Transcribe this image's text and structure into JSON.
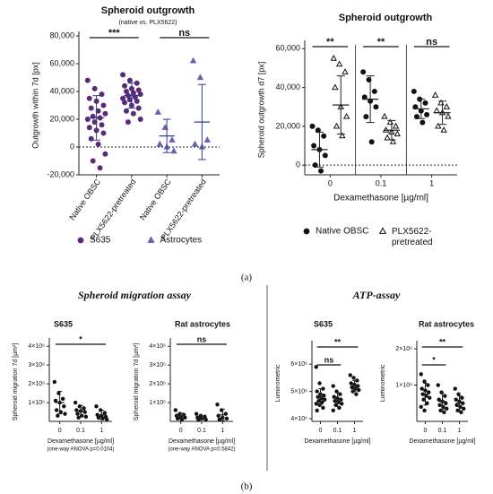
{
  "panel_labels": [
    "(a)",
    "(b)"
  ],
  "headers": [
    "Spheroid migration assay",
    "ATP-assay"
  ],
  "chart_data": [
    {
      "type": "dot",
      "title": "Spheroid outgrowth",
      "subtitle": "(native vs. PLX5622)",
      "ylabel": "Outgrowth within 7d [px]",
      "categories": [
        "Native OBSC",
        "PLX5622-pretreated",
        "Native OBSC",
        "PLX5622-pretreated"
      ],
      "ylim": [
        -20000,
        80000
      ],
      "yticks": [
        {
          "value": -20000,
          "label": "-20,000"
        },
        0,
        {
          "value": 20000,
          "label": "20,000"
        },
        {
          "value": 40000,
          "label": "40,000"
        },
        {
          "value": 60000,
          "label": "60,000"
        },
        {
          "value": 80000,
          "label": "80,000"
        }
      ],
      "zero_line": true,
      "legend": "bottom",
      "series": [
        {
          "name": "S635",
          "color": "#5b2a7a",
          "marker": "circle",
          "filled": true,
          "values": [
            [
              48000,
              42000,
              38000,
              35000,
              33000,
              30000,
              28000,
              26000,
              24000,
              22000,
              21000,
              20000,
              18000,
              16000,
              14000,
              12000,
              10000,
              6000,
              2000,
              -5000,
              -10000,
              -15000
            ],
            [
              52000,
              48000,
              46000,
              44000,
              42000,
              41000,
              40000,
              39000,
              38000,
              37000,
              36000,
              35000,
              34000,
              33000,
              32000,
              30000,
              28000,
              26000,
              24000,
              20000,
              18000
            ],
            null,
            null
          ],
          "mean": [
            21000,
            37000,
            null,
            null
          ],
          "sd": [
            16000,
            9000,
            null,
            null
          ]
        },
        {
          "name": "Astrocytes",
          "color": "#6a5fb0",
          "marker": "triangle",
          "filled": true,
          "values": [
            null,
            null,
            [
              25000,
              14000,
              5000,
              2000,
              0,
              -3000
            ],
            [
              62000,
              50000,
              5000,
              2000,
              0
            ]
          ],
          "mean": [
            null,
            null,
            8000,
            18000
          ],
          "sd": [
            null,
            null,
            12000,
            27000
          ]
        }
      ],
      "annotations": [
        {
          "text": "***",
          "from": 0,
          "to": 1
        },
        {
          "text": "ns",
          "from": 2,
          "to": 3
        }
      ]
    },
    {
      "type": "dot",
      "title": "Spheroid outgrowth",
      "ylabel": "Spheroid outgrowth d7 [px]",
      "xlabel": "Dexamethasone [µg/ml]",
      "categories": [
        "0",
        "0.1",
        "1"
      ],
      "ylim": [
        -5000,
        62000
      ],
      "yticks": [
        0,
        {
          "value": 20000,
          "label": "20,000"
        },
        {
          "value": 40000,
          "label": "40,000"
        },
        {
          "value": 60000,
          "label": "60,000"
        }
      ],
      "zero_line": true,
      "separators": true,
      "legend": "bottom",
      "series": [
        {
          "name": "Native OBSC",
          "color": "#111111",
          "marker": "circle",
          "filled": true,
          "values": [
            [
              20000,
              18000,
              15000,
              10000,
              8000,
              5000,
              0,
              -3000
            ],
            [
              48000,
              44000,
              38000,
              35000,
              33000,
              30000,
              25000,
              12000
            ],
            [
              38000,
              34000,
              32000,
              30000,
              28000,
              26000,
              25000,
              22000
            ]
          ],
          "mean": [
            8000,
            34000,
            29000
          ],
          "sd": [
            9000,
            12000,
            5000
          ]
        },
        {
          "name": "PLX5622-pretreated",
          "color": "#111111",
          "marker": "triangle",
          "filled": false,
          "values": [
            [
              55000,
              52000,
              48000,
              40000,
              30000,
              25000,
              20000,
              15000
            ],
            [
              25000,
              22000,
              20000,
              18000,
              17000,
              16000,
              14000,
              12000
            ],
            [
              36000,
              32000,
              30000,
              28000,
              27000,
              25000,
              20000,
              18000
            ]
          ],
          "mean": [
            31000,
            18000,
            27000
          ],
          "sd": [
            15000,
            5000,
            6000
          ]
        }
      ],
      "annotations": [
        {
          "text": "**",
          "from": 0,
          "to": 0
        },
        {
          "text": "**",
          "from": 1,
          "to": 1
        },
        {
          "text": "ns",
          "from": 2,
          "to": 2
        }
      ]
    },
    {
      "type": "dot",
      "title": "S635",
      "ylabel": "Spheroid migration 7d [µm²]",
      "xlabel": "Dexamethasone [µg/ml]",
      "note": "(one-way ANOVA p=0.0104)",
      "categories": [
        "0",
        "0.1",
        "1"
      ],
      "ylim": [
        0,
        4200000
      ],
      "yticks": [
        {
          "value": 1000000,
          "label": "1×10⁶"
        },
        {
          "value": 2000000,
          "label": "2×10⁶"
        },
        {
          "value": 3000000,
          "label": "3×10⁶"
        },
        {
          "value": 4000000,
          "label": "4×10⁶"
        }
      ],
      "series": [
        {
          "color": "#111111",
          "marker": "circle",
          "filled": true,
          "values": [
            [
              2100000,
              1500000,
              1200000,
              1100000,
              1000000,
              800000,
              600000,
              500000,
              400000,
              300000
            ],
            [
              1000000,
              800000,
              700000,
              600000,
              550000,
              500000,
              400000,
              300000,
              250000,
              200000
            ],
            [
              800000,
              600000,
              450000,
              350000,
              300000,
              250000,
              200000,
              150000,
              100000
            ]
          ],
          "mean": [
            1000000,
            550000,
            350000
          ],
          "sd": [
            600000,
            300000,
            250000
          ]
        }
      ],
      "annotations": [
        {
          "text": "*",
          "from": 0,
          "to": 2
        }
      ]
    },
    {
      "type": "dot",
      "title": "Rat astrocytes",
      "ylabel": "Spheroid migration 7d [µm²]",
      "xlabel": "Dexamethasone [µg/ml]",
      "note": "(one-way ANOVA p=0.5842)",
      "categories": [
        "0",
        "0.1",
        "1"
      ],
      "ylim": [
        0,
        4200000
      ],
      "yticks": [
        {
          "value": 1000000,
          "label": "1×10⁶"
        },
        {
          "value": 2000000,
          "label": "2×10⁶"
        },
        {
          "value": 3000000,
          "label": "3×10⁶"
        },
        {
          "value": 4000000,
          "label": "4×10⁶"
        }
      ],
      "series": [
        {
          "color": "#111111",
          "marker": "circle",
          "filled": true,
          "values": [
            [
              600000,
              400000,
              350000,
              300000,
              250000,
              200000,
              150000,
              100000
            ],
            [
              400000,
              300000,
              250000,
              200000,
              150000,
              100000,
              80000
            ],
            [
              900000,
              600000,
              400000,
              300000,
              200000,
              150000,
              100000
            ]
          ],
          "mean": [
            300000,
            200000,
            350000
          ],
          "sd": [
            150000,
            100000,
            300000
          ]
        }
      ],
      "annotations": [
        {
          "text": "ns",
          "from": 0,
          "to": 2
        }
      ]
    },
    {
      "type": "dot",
      "title": "S635",
      "ylabel": "Luminometric",
      "xlabel": "Dexamethasone [µg/ml]",
      "categories": [
        "0",
        "0.1",
        "1"
      ],
      "ylim": [
        3900000,
        6700000
      ],
      "yticks": [
        {
          "value": 4000000,
          "label": "4×10⁶"
        },
        {
          "value": 5000000,
          "label": "5×10⁶"
        },
        {
          "value": 6000000,
          "label": "6×10⁶"
        }
      ],
      "series": [
        {
          "color": "#111111",
          "marker": "circle",
          "filled": true,
          "values": [
            [
              5900000,
              5300000,
              5100000,
              5000000,
              4900000,
              4850000,
              4800000,
              4750000,
              4700000,
              4650000,
              4600000,
              4550000,
              4500000,
              4400000,
              4300000
            ],
            [
              5200000,
              5000000,
              4900000,
              4800000,
              4750000,
              4700000,
              4650000,
              4600000,
              4550000,
              4500000,
              4400000,
              4300000
            ],
            [
              5600000,
              5500000,
              5400000,
              5300000,
              5250000,
              5200000,
              5150000,
              5100000,
              5050000,
              5000000,
              4900000
            ]
          ],
          "mean": [
            4800000,
            4700000,
            5200000
          ],
          "sd": [
            300000,
            250000,
            200000
          ]
        }
      ],
      "annotations": [
        {
          "text": "**",
          "from": 0,
          "to": 2
        },
        {
          "text": "ns",
          "from": 0,
          "to": 1
        }
      ]
    },
    {
      "type": "dot",
      "title": "Rat astrocytes",
      "ylabel": "Luminometric",
      "xlabel": "Dexamethasone [µg/ml]",
      "categories": [
        "0",
        "0.1",
        "1"
      ],
      "ylim": [
        0,
        2100000
      ],
      "yticks": [
        {
          "value": 1000000,
          "label": "1×10⁶"
        },
        {
          "value": 2000000,
          "label": "2×10⁶"
        }
      ],
      "series": [
        {
          "color": "#111111",
          "marker": "circle",
          "filled": true,
          "values": [
            [
              1300000,
              1100000,
              1000000,
              900000,
              850000,
              800000,
              750000,
              700000,
              650000,
              600000,
              500000,
              400000,
              300000
            ],
            [
              1000000,
              800000,
              700000,
              600000,
              550000,
              500000,
              450000,
              400000,
              350000,
              300000,
              250000
            ],
            [
              900000,
              750000,
              650000,
              600000,
              550000,
              500000,
              450000,
              400000,
              350000,
              300000,
              250000
            ]
          ],
          "mean": [
            750000,
            550000,
            500000
          ],
          "sd": [
            300000,
            220000,
            200000
          ]
        }
      ],
      "annotations": [
        {
          "text": "**",
          "from": 0,
          "to": 2
        },
        {
          "text": "*",
          "from": 0,
          "to": 1
        }
      ]
    }
  ]
}
